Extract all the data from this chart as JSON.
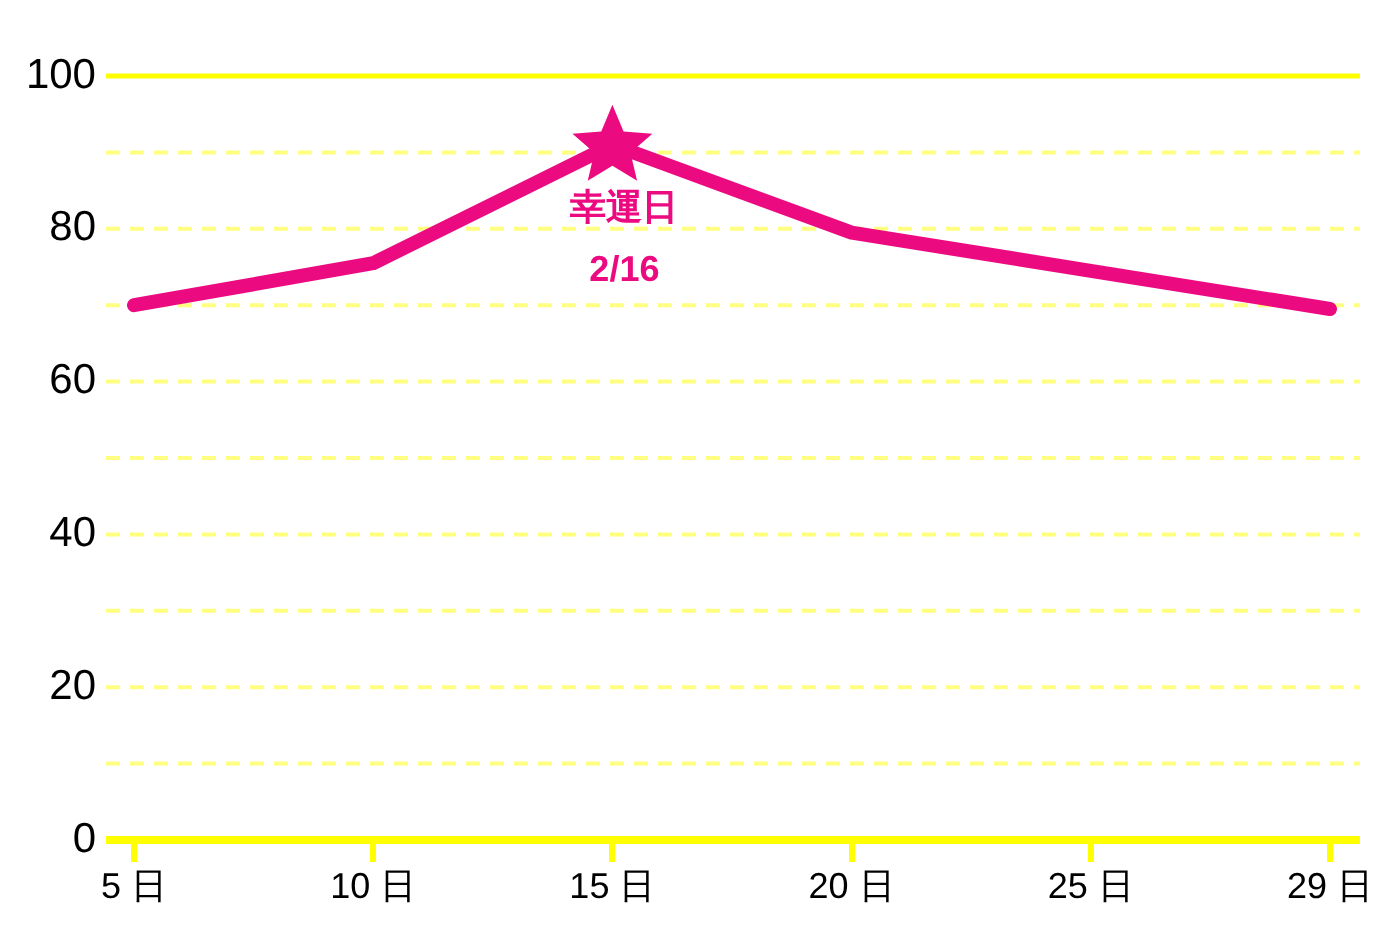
{
  "chart_data": {
    "type": "line",
    "categories": [
      "5 日",
      "10 日",
      "15 日",
      "20 日",
      "25 日",
      "29 日"
    ],
    "series": [
      {
        "type": "line",
        "color": "#ec0a80",
        "values": [
          70,
          75.5,
          91,
          79.5,
          74.5,
          69.5
        ],
        "marker": "none"
      },
      {
        "type": "scatter",
        "x": [
          "15 日"
        ],
        "values": [
          91
        ],
        "color": "#ec0a80",
        "marker": "star"
      }
    ],
    "ylim": [
      0,
      100
    ],
    "yticks": [
      0,
      {
        "value": 10,
        "label": null
      },
      20,
      {
        "value": 30,
        "label": null
      },
      40,
      {
        "value": 50,
        "label": null
      },
      60,
      {
        "value": 70,
        "label": null
      },
      80,
      {
        "value": 90,
        "label": null
      },
      100
    ],
    "grid": "y",
    "annotations": [
      {
        "text": "幸運日\n2/16",
        "x": "15 日",
        "y": 91
      }
    ]
  }
}
